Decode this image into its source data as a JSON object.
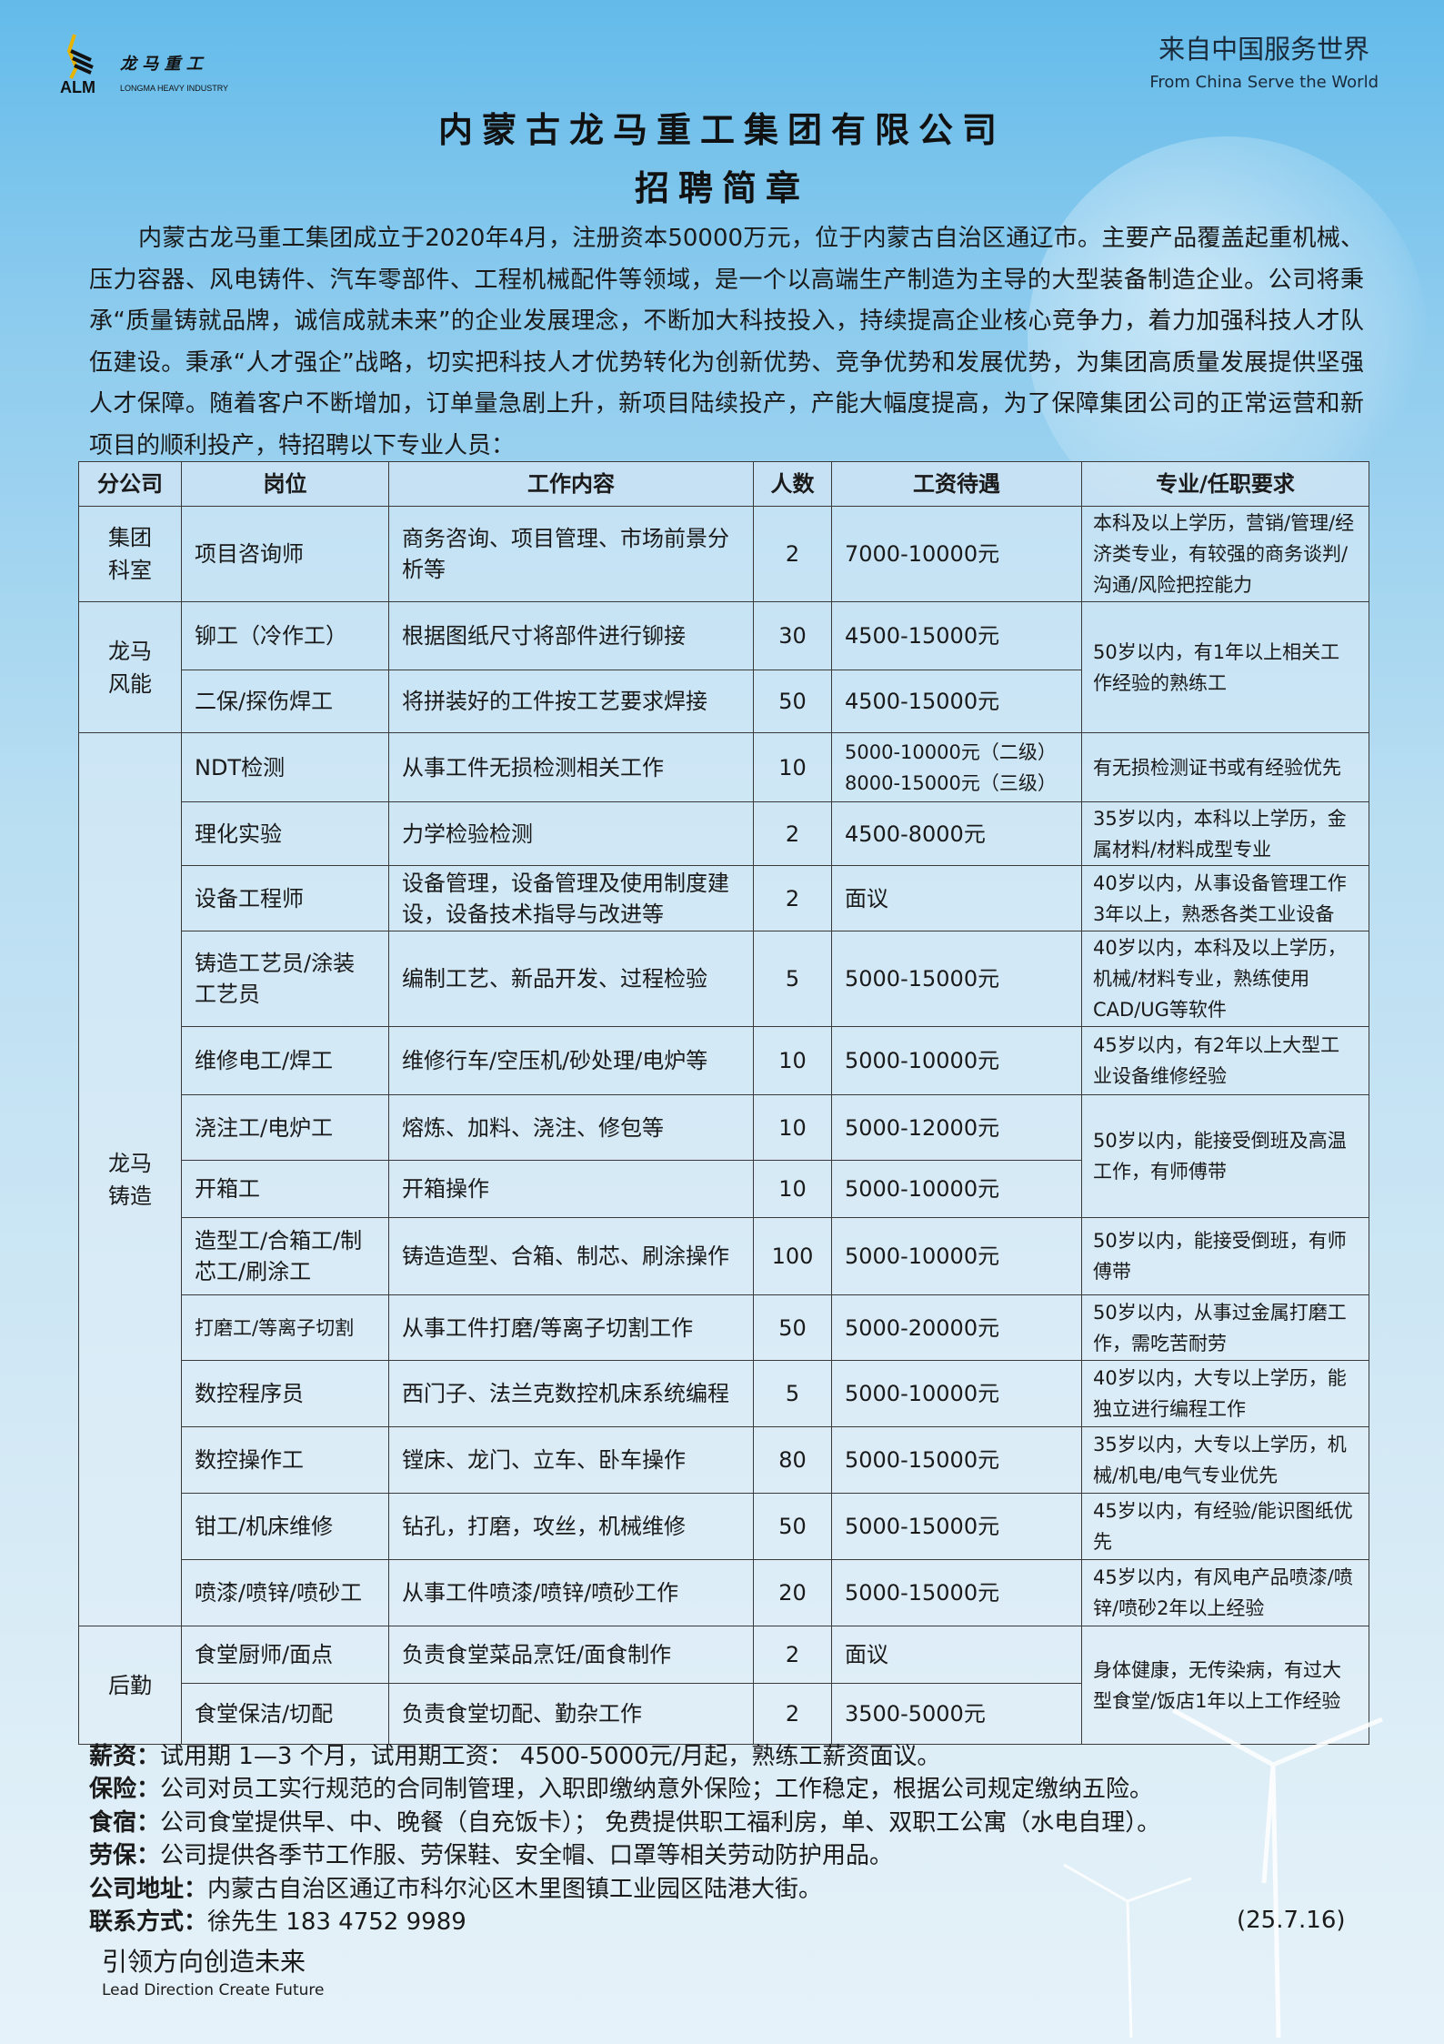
{
  "logo": {
    "brand_cn": "龙马重工",
    "abbr": "ALM",
    "brand_en": "LONGMA HEAVY INDUSTRY"
  },
  "slogan": {
    "cn": "来自中国服务世界",
    "en": "From China Serve the World"
  },
  "title": "内蒙古龙马重工集团有限公司",
  "subtitle": "招聘简章",
  "intro": "内蒙古龙马重工集团成立于2020年4月，注册资本50000万元，位于内蒙古自治区通辽市。主要产品覆盖起重机械、压力容器、风电铸件、汽车零部件、工程机械配件等领域，是一个以高端生产制造为主导的大型装备制造企业。公司将秉承“质量铸就品牌，诚信成就未来”的企业发展理念，不断加大科技投入，持续提高企业核心竞争力，着力加强科技人才队伍建设。秉承“人才强企”战略，切实把科技人才优势转化为创新优势、竞争优势和发展优势，为集团高质量发展提供坚强人才保障。随着客户不断增加，订单量急剧上升，新项目陆续投产，产能大幅度提高，为了保障集团公司的正常运营和新项目的顺利投产，特招聘以下专业人员：",
  "table": {
    "headers": [
      "分公司",
      "岗位",
      "工作内容",
      "人数",
      "工资待遇",
      "专业/任职要求"
    ],
    "branches": [
      {
        "name": "集团科室",
        "rows": [
          {
            "position": "项目咨询师",
            "content": "商务咨询、项目管理、市场前景分析等",
            "count": "2",
            "salary": "7000-10000元",
            "requirement": "本科及以上学历，营销/管理/经济类专业，有较强的商务谈判/沟通/风险把控能力"
          }
        ]
      },
      {
        "name": "龙马风能",
        "rows": [
          {
            "position": "铆工（冷作工）",
            "content": "根据图纸尺寸将部件进行铆接",
            "count": "30",
            "salary": "4500-15000元",
            "requirement": "50岁以内，有1年以上相关工作经验的熟练工"
          },
          {
            "position": "二保/探伤焊工",
            "content": "将拼装好的工件按工艺要求焊接",
            "count": "50",
            "salary": "4500-15000元"
          }
        ]
      },
      {
        "name": "龙马铸造",
        "rows": [
          {
            "position": "NDT检测",
            "content": "从事工件无损检测相关工作",
            "count": "10",
            "salary": "5000-10000元（二级）",
            "salary2": "8000-15000元（三级）",
            "requirement": "有无损检测证书或有经验优先"
          },
          {
            "position": "理化实验",
            "content": "力学检验检测",
            "count": "2",
            "salary": "4500-8000元",
            "requirement": "35岁以内，本科以上学历，金属材料/材料成型专业"
          },
          {
            "position": "设备工程师",
            "content": "设备管理，设备管理及使用制度建设，设备技术指导与改进等",
            "count": "2",
            "salary": "面议",
            "requirement": "40岁以内，从事设备管理工作3年以上，熟悉各类工业设备"
          },
          {
            "position": "铸造工艺员/涂装工艺员",
            "content": "编制工艺、新品开发、过程检验",
            "count": "5",
            "salary": "5000-15000元",
            "requirement": "40岁以内，本科及以上学历，机械/材料专业，熟练使用CAD/UG等软件"
          },
          {
            "position": "维修电工/焊工",
            "content": "维修行车/空压机/砂处理/电炉等",
            "count": "10",
            "salary": "5000-10000元",
            "requirement": "45岁以内，有2年以上大型工业设备维修经验"
          },
          {
            "position": "浇注工/电炉工",
            "content": "熔炼、加料、浇注、修包等",
            "count": "10",
            "salary": "5000-12000元",
            "requirement": "50岁以内，能接受倒班及高温工作，有师傅带"
          },
          {
            "position": "开箱工",
            "content": "开箱操作",
            "count": "10",
            "salary": "5000-10000元"
          },
          {
            "position": "造型工/合箱工/制芯工/刷涂工",
            "content": "铸造造型、合箱、制芯、刷涂操作",
            "count": "100",
            "salary": "5000-10000元",
            "requirement": "50岁以内，能接受倒班，有师傅带"
          },
          {
            "position": "打磨工/等离子切割",
            "content": "从事工件打磨/等离子切割工作",
            "count": "50",
            "salary": "5000-20000元",
            "requirement": "50岁以内，从事过金属打磨工作，需吃苦耐劳",
            "small": true
          },
          {
            "position": "数控程序员",
            "content": "西门子、法兰克数控机床系统编程",
            "count": "5",
            "salary": "5000-10000元",
            "requirement": "40岁以内，大专以上学历，能独立进行编程工作"
          },
          {
            "position": "数控操作工",
            "content": "镗床、龙门、立车、卧车操作",
            "count": "80",
            "salary": "5000-15000元",
            "requirement": "35岁以内，大专以上学历，机械/机电/电气专业优先"
          },
          {
            "position": "钳工/机床维修",
            "content": "钻孔，打磨，攻丝，机械维修",
            "count": "50",
            "salary": "5000-15000元",
            "requirement": "45岁以内，有经验/能识图纸优先"
          },
          {
            "position": "喷漆/喷锌/喷砂工",
            "content": "从事工件喷漆/喷锌/喷砂工作",
            "count": "20",
            "salary": "5000-15000元",
            "requirement": "45岁以内，有风电产品喷漆/喷锌/喷砂2年以上经验"
          }
        ]
      },
      {
        "name": "后勤",
        "rows": [
          {
            "position": "食堂厨师/面点",
            "content": "负责食堂菜品烹饪/面食制作",
            "count": "2",
            "salary": "面议",
            "requirement": "身体健康，无传染病，有过大型食堂/饭店1年以上工作经验"
          },
          {
            "position": "食堂保洁/切配",
            "content": "负责食堂切配、勤杂工作",
            "count": "2",
            "salary": "3500-5000元"
          }
        ]
      }
    ]
  },
  "benefits": [
    {
      "label": "薪资：",
      "text": "试用期 1—3 个月，试用期工资： 4500-5000元/月起，熟练工薪资面议。"
    },
    {
      "label": "保险：",
      "text": "公司对员工实行规范的合同制管理，入职即缴纳意外保险；工作稳定，根据公司规定缴纳五险。"
    },
    {
      "label": "食宿：",
      "text": "公司食堂提供早、中、晚餐（自充饭卡）； 免费提供职工福利房，单、双职工公寓（水电自理）。"
    },
    {
      "label": "劳保：",
      "text": "公司提供各季节工作服、劳保鞋、安全帽、口罩等相关劳动防护用品。"
    },
    {
      "label": "公司地址：",
      "text": "内蒙古自治区通辽市科尔沁区木里图镇工业园区陆港大街。"
    },
    {
      "label": "联系方式：",
      "text": "徐先生  183 4752 9989"
    }
  ],
  "date": "(25.7.16)",
  "footer": {
    "cn": "引领方向创造未来",
    "en": "Lead Direction Create Future"
  },
  "colors": {
    "bg_top": "#63bbea",
    "bg_bottom": "#e6f2f9",
    "logo_gold": "#e8b400"
  }
}
